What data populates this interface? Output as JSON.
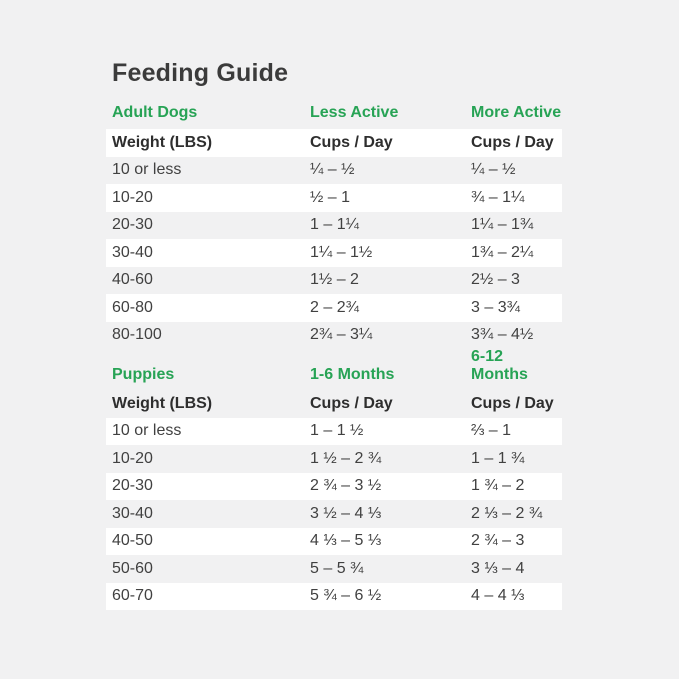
{
  "page": {
    "title": "Feeding Guide",
    "background_color": "#f1f1f2",
    "stripe_color": "#ffffff",
    "accent_green": "#27a355",
    "text_color": "#3f3f3f"
  },
  "tables": [
    {
      "section_label": "Adult Dogs",
      "col2_label": "Less Active",
      "col3_label": "More Active",
      "subheader": {
        "col1": "Weight (LBS)",
        "col2": "Cups / Day",
        "col3": "Cups / Day"
      },
      "rows": [
        {
          "weight": "10 or less",
          "col2": "¼ – ½",
          "col3": "¼ – ½"
        },
        {
          "weight": "10-20",
          "col2": "½ – 1",
          "col3": "¾ – 1¼"
        },
        {
          "weight": "20-30",
          "col2": "1 – 1¼",
          "col3": "1¼ – 1¾"
        },
        {
          "weight": "30-40",
          "col2": "1¼ – 1½",
          "col3": "1¾ – 2¼"
        },
        {
          "weight": "40-60",
          "col2": "1½ – 2",
          "col3": "2½ – 3"
        },
        {
          "weight": "60-80",
          "col2": "2 – 2¾",
          "col3": "3 – 3¾"
        },
        {
          "weight": "80-100",
          "col2": "2¾ – 3¼",
          "col3": "3¾ – 4½"
        }
      ]
    },
    {
      "section_label": "Puppies",
      "col2_label": "1-6 Months",
      "col3_label": "6-12 Months",
      "subheader": {
        "col1": "Weight (LBS)",
        "col2": "Cups / Day",
        "col3": "Cups / Day"
      },
      "rows": [
        {
          "weight": "10 or less",
          "col2": "1 – 1 ½",
          "col3": "⅔ – 1"
        },
        {
          "weight": "10-20",
          "col2": "1 ½ – 2 ¾",
          "col3": "1 – 1 ¾"
        },
        {
          "weight": "20-30",
          "col2": "2 ¾ – 3 ½",
          "col3": "1 ¾ – 2"
        },
        {
          "weight": "30-40",
          "col2": "3 ½ – 4 ⅓",
          "col3": "2 ⅓ – 2 ¾"
        },
        {
          "weight": "40-50",
          "col2": "4 ⅓ – 5 ⅓",
          "col3": "2 ¾ – 3"
        },
        {
          "weight": "50-60",
          "col2": "5 – 5 ¾",
          "col3": "3 ⅓ – 4"
        },
        {
          "weight": "60-70",
          "col2": "5 ¾ – 6 ½",
          "col3": "4 – 4 ⅓"
        }
      ]
    }
  ]
}
